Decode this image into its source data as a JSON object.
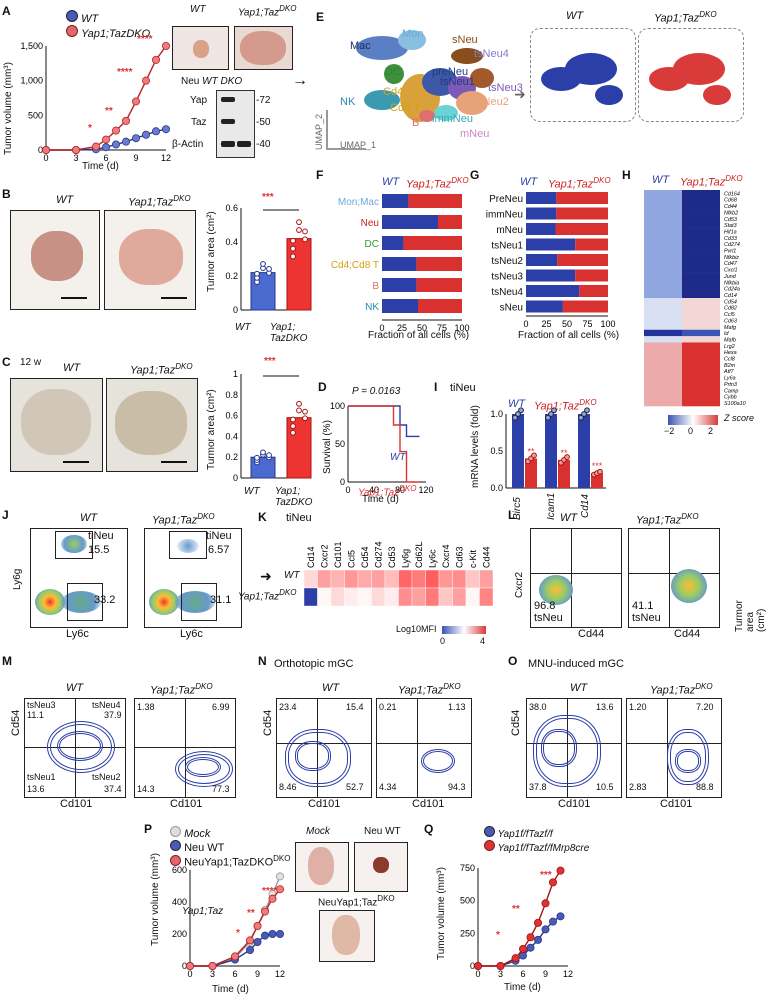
{
  "panels": {
    "A": "A",
    "B": "B",
    "C": "C",
    "D": "D",
    "E": "E",
    "F": "F",
    "G": "G",
    "H": "H",
    "I": "I",
    "J": "J",
    "K": "K",
    "L": "L",
    "M": "M",
    "N": "N",
    "O": "O",
    "P": "P",
    "Q": "Q"
  },
  "geno": {
    "wt": "WT",
    "dko": "Yap1;Taz",
    "dko_sup": "DKO",
    "neu_wt": "Neu WT",
    "neu_dko": "NeuYap1;Taz",
    "mock": "Mock",
    "yap_taz": "Yap1;Taz"
  },
  "panelA": {
    "ylabel": "Tumor volume (mm³)",
    "xlabel": "Time (d)",
    "legend": [
      "WT",
      "Yap1;TazDKO"
    ],
    "stars": [
      "*",
      "**",
      "****",
      "****"
    ],
    "western": {
      "header": "Neu",
      "lanes": [
        "WT",
        "DKO"
      ],
      "rows": [
        "Yap",
        "Taz",
        "β-Actin"
      ],
      "kda": [
        "72",
        "50",
        "40"
      ]
    }
  },
  "panelB": {
    "ylabel": "Turmor area (cm²)",
    "sig": "***",
    "xticks": [
      "WT",
      "Yap1;",
      "TazDKO"
    ]
  },
  "panelC": {
    "tag": "12 w",
    "ylabel": "Turmor area (cm²)",
    "sig": "***"
  },
  "panelD": {
    "p": "P = 0.0163",
    "ylabel": "Survival (%)",
    "xlabel": "Time (d)",
    "wt": "WT",
    "dko": "Yap1;TazDKO"
  },
  "panelE": {
    "clusters": [
      "Mac",
      "Mon",
      "sNeu",
      "tsNeu4",
      "DC",
      "preNeu",
      "tsNeu1",
      "tsNeu3",
      "NK",
      "Cd4",
      "Cd8 T",
      "tsNeu2",
      "B",
      "immNeu",
      "mNeu"
    ],
    "umap1": "UMAP_1",
    "umap2": "UMAP_2"
  },
  "panelF": {
    "xlabel": "Fraction of all cells (%)",
    "labels": [
      "Mon;Mac",
      "Neu",
      "DC",
      "Cd4;Cd8 T",
      "B",
      "NK"
    ],
    "colors": [
      "#6fa8dc",
      "#cc2222",
      "#2c9a2c",
      "#d9a010",
      "#e86b6b",
      "#2a8ab0"
    ]
  },
  "panelG": {
    "xlabel": "Fraction of all cells (%)",
    "labels": [
      "PreNeu",
      "immNeu",
      "mNeu",
      "tsNeu1",
      "tsNeu2",
      "tsNeu3",
      "tsNeu4",
      "sNeu"
    ]
  },
  "panelH": {
    "genes": [
      "Cd164",
      "Cd68",
      "Cd44",
      "Nfkb2",
      "Cd53",
      "Stat3",
      "Hif1a",
      "Cd33",
      "Cd274",
      "Pvrl1",
      "Nfkbiz",
      "Cd47",
      "Cxcl1",
      "Jund",
      "Nfkbia",
      "Cd24a",
      "Cd14",
      "Cd54",
      "Cd82",
      "Ccl5",
      "Cd63",
      "Mafg",
      "Id",
      "Mafb",
      "Lrg2",
      "Hexa",
      "Ccl8",
      "B2m",
      "Atf7",
      "Ly6a",
      "Prtn3",
      "Camp",
      "Cybb",
      "S100a10"
    ],
    "zlabel": "Z score",
    "zticks": [
      "−2",
      "0",
      "2"
    ]
  },
  "panelI": {
    "title": "tiNeu",
    "ylabel": "mRNA levels (fold)",
    "genes": [
      "Birc5",
      "Icam1",
      "Cd14"
    ],
    "stars": [
      "**",
      "**",
      "***"
    ]
  },
  "panelJ": {
    "ylabel": "Ly6g",
    "xlabel": "Ly6c",
    "gate": "tiNeu",
    "wt": [
      "15.5",
      "33.2"
    ],
    "dko": [
      "6.57",
      "31.1"
    ]
  },
  "panelK": {
    "title": "tiNeu",
    "markers": [
      "Cd14",
      "Cxcr2",
      "Cd101",
      "Ccl5",
      "Cd54",
      "Cd274",
      "Cd53",
      "Ly6g",
      "Cd62L",
      "Ly6c",
      "Cxcr4",
      "Cd63",
      "c-Kit",
      "Cd44"
    ],
    "scale": "Log10MFI",
    "ticks": [
      "0",
      "4"
    ],
    "rows": [
      "WT",
      "Yap1;TazDKO"
    ]
  },
  "panelL": {
    "ylabel": "Cxcr2",
    "xlabel": "Cd44",
    "gate": "tsNeu",
    "wt": "96.8",
    "dko": "41.1",
    "side": "Turmor area (cm²)"
  },
  "panelM": {
    "ylabel": "Cd54",
    "xlabel": "Cd101",
    "quads": [
      "tsNeu3",
      "tsNeu4",
      "tsNeu1",
      "tsNeu2"
    ],
    "wt": [
      "11.1",
      "37.9",
      "13.6",
      "37.4"
    ],
    "dko": [
      "1.38",
      "6.99",
      "14.3",
      "77.3"
    ]
  },
  "panelN": {
    "title": "Orthotopic mGC",
    "ylabel": "Cd54",
    "xlabel": "Cd101",
    "wt": [
      "23.4",
      "15.4",
      "8.46",
      "52.7"
    ],
    "dko": [
      "0.21",
      "1.13",
      "4.34",
      "94.3"
    ]
  },
  "panelO": {
    "title": "MNU-induced mGC",
    "ylabel": "Cd54",
    "xlabel": "Cd101",
    "wt": [
      "38.0",
      "13.6",
      "37.8",
      "10.5"
    ],
    "dko": [
      "1.20",
      "7.20",
      "2.83",
      "88.8"
    ]
  },
  "panelP": {
    "ylabel": "Tumor volume (mm³)",
    "xlabel": "Time (d)",
    "legend": [
      "Mock",
      "Neu WT",
      "NeuYap1;TazDKO"
    ],
    "stars": [
      "*",
      "**",
      "****"
    ]
  },
  "panelQ": {
    "ylabel": "Tumor volume (mm³)",
    "xlabel": "Time (d)",
    "legend": [
      "Yap1f/fTazf/f",
      "Yap1f/fTazf/fMrp8cre"
    ],
    "stars": [
      "*",
      "**",
      "***"
    ]
  },
  "chart_data": [
    {
      "type": "line",
      "id": "A",
      "title": "",
      "xlabel": "Time (d)",
      "ylabel": "Tumor volume (mm³)",
      "x": [
        0,
        3,
        5,
        6,
        7,
        8,
        9,
        10,
        11,
        12
      ],
      "series": [
        {
          "name": "WT",
          "values": [
            0,
            0,
            10,
            40,
            80,
            120,
            170,
            220,
            270,
            300
          ]
        },
        {
          "name": "Yap1;TazDKO",
          "values": [
            0,
            0,
            50,
            150,
            280,
            420,
            700,
            1000,
            1300,
            1500
          ]
        }
      ],
      "ylim": [
        0,
        1500
      ],
      "xticks": [
        0,
        3,
        6,
        9,
        12
      ],
      "yticks": [
        0,
        500,
        1000,
        1500
      ]
    },
    {
      "type": "bar",
      "id": "B",
      "categories": [
        "WT",
        "Yap1;TazDKO"
      ],
      "values": [
        0.22,
        0.42
      ],
      "ylim": [
        0,
        0.6
      ],
      "yticks": [
        0,
        0.2,
        0.4,
        0.6
      ]
    },
    {
      "type": "bar",
      "id": "C",
      "categories": [
        "WT",
        "Yap1;TazDKO"
      ],
      "values": [
        0.2,
        0.58
      ],
      "ylim": [
        0,
        1.0
      ],
      "yticks": [
        0,
        0.2,
        0.4,
        0.6,
        0.8,
        1.0
      ]
    },
    {
      "type": "line",
      "id": "D",
      "xlabel": "Time (d)",
      "ylabel": "Survival (%)",
      "x": [
        0,
        40,
        60,
        70,
        80,
        90,
        100,
        110
      ],
      "series": [
        {
          "name": "WT",
          "values": [
            100,
            100,
            100,
            100,
            75,
            60,
            60,
            60
          ]
        },
        {
          "name": "Yap1;TazDKO",
          "values": [
            100,
            100,
            100,
            75,
            40,
            0,
            0,
            0
          ]
        }
      ],
      "ylim": [
        0,
        100
      ],
      "xticks": [
        0,
        40,
        80,
        120
      ],
      "yticks": [
        0,
        50,
        100
      ]
    },
    {
      "type": "bar",
      "id": "F",
      "categories": [
        "Mon;Mac",
        "Neu",
        "DC",
        "Cd4;Cd8 T",
        "B",
        "NK"
      ],
      "series": [
        {
          "name": "WT",
          "values": [
            33,
            70,
            27,
            43,
            43,
            45
          ]
        },
        {
          "name": "Yap1;TazDKO",
          "values": [
            67,
            30,
            73,
            57,
            57,
            55
          ]
        }
      ],
      "xticks": [
        0,
        25,
        50,
        75,
        100
      ]
    },
    {
      "type": "bar",
      "id": "G",
      "categories": [
        "PreNeu",
        "immNeu",
        "mNeu",
        "tsNeu1",
        "tsNeu2",
        "tsNeu3",
        "tsNeu4",
        "sNeu"
      ],
      "series": [
        {
          "name": "WT",
          "values": [
            37,
            37,
            36,
            60,
            38,
            60,
            65,
            45
          ]
        },
        {
          "name": "Yap1;TazDKO",
          "values": [
            63,
            63,
            64,
            40,
            62,
            40,
            35,
            55
          ]
        }
      ],
      "xticks": [
        0,
        25,
        50,
        75,
        100
      ]
    },
    {
      "type": "bar",
      "id": "I",
      "categories": [
        "Birc5",
        "Icam1",
        "Cd14"
      ],
      "series": [
        {
          "name": "WT",
          "values": [
            1.0,
            1.0,
            1.0
          ]
        },
        {
          "name": "Yap1;TazDKO",
          "values": [
            0.4,
            0.38,
            0.2
          ]
        }
      ],
      "ylim": [
        0,
        1.0
      ],
      "yticks": [
        0,
        0.5,
        1.0
      ]
    },
    {
      "type": "line",
      "id": "P",
      "xlabel": "Time (d)",
      "ylabel": "Tumor volume (mm³)",
      "x": [
        0,
        3,
        6,
        8,
        9,
        10,
        11,
        12
      ],
      "series": [
        {
          "name": "Mock",
          "values": [
            0,
            0,
            50,
            150,
            250,
            350,
            450,
            560
          ]
        },
        {
          "name": "Neu WT",
          "values": [
            0,
            0,
            40,
            100,
            150,
            190,
            200,
            200
          ]
        },
        {
          "name": "NeuYap1;TazDKO",
          "values": [
            0,
            0,
            60,
            160,
            250,
            340,
            420,
            480
          ]
        }
      ],
      "ylim": [
        0,
        600
      ],
      "xticks": [
        0,
        3,
        6,
        9,
        12
      ],
      "yticks": [
        0,
        200,
        400,
        600
      ]
    },
    {
      "type": "line",
      "id": "Q",
      "xlabel": "Time (d)",
      "ylabel": "Tumor volume (mm³)",
      "x": [
        0,
        3,
        5,
        6,
        7,
        8,
        9,
        10,
        11
      ],
      "series": [
        {
          "name": "Yap1f/fTazf/f",
          "values": [
            0,
            0,
            40,
            80,
            140,
            200,
            280,
            340,
            380
          ]
        },
        {
          "name": "Yap1f/fTazf/fMrp8cre",
          "values": [
            0,
            0,
            60,
            130,
            220,
            330,
            480,
            640,
            730
          ]
        }
      ],
      "ylim": [
        0,
        750
      ],
      "xticks": [
        0,
        3,
        6,
        9,
        12
      ],
      "yticks": [
        0,
        250,
        500,
        750
      ]
    }
  ]
}
